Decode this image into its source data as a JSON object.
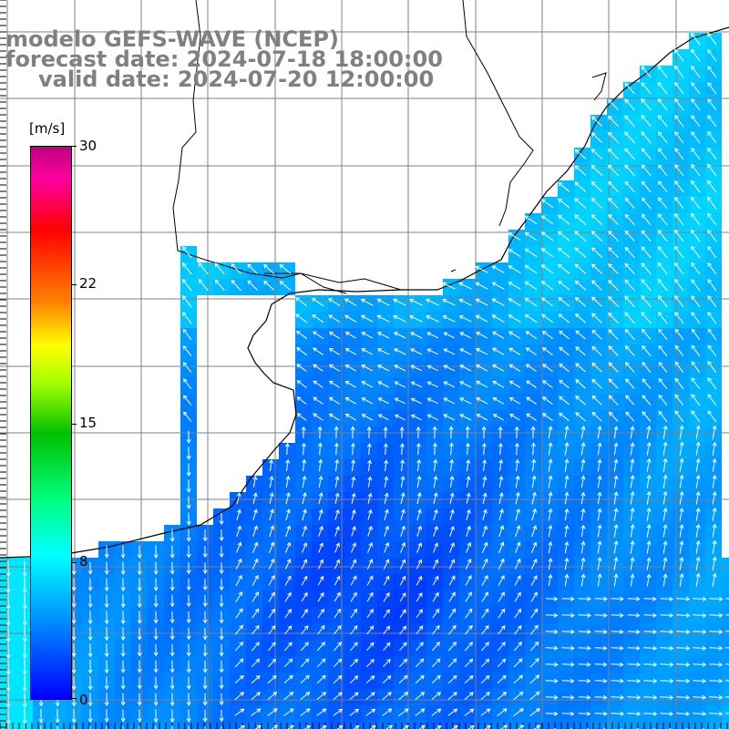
{
  "title": {
    "line1": "modelo GEFS-WAVE (NCEP)",
    "line2": "forecast date: 2024-07-18 18:00:00",
    "line3": "valid date: 2024-07-20 12:00:00"
  },
  "colorbar": {
    "unit": "[m/s]",
    "ticks": [
      "30",
      "22",
      "15",
      "8",
      "0"
    ],
    "range": [
      0,
      30
    ],
    "colors": [
      "#0000ff",
      "#00a0ff",
      "#00ffff",
      "#00ff80",
      "#00c000",
      "#a0ff00",
      "#ffff00",
      "#ff8000",
      "#ff0000",
      "#ff00a0",
      "#c00080"
    ]
  },
  "map": {
    "land_color": "#ffffff",
    "coastline_color": "#000000",
    "grid_color": "#808080",
    "vector_color": "#ffffff",
    "field": "wind speed with direction vectors",
    "grid": true
  }
}
